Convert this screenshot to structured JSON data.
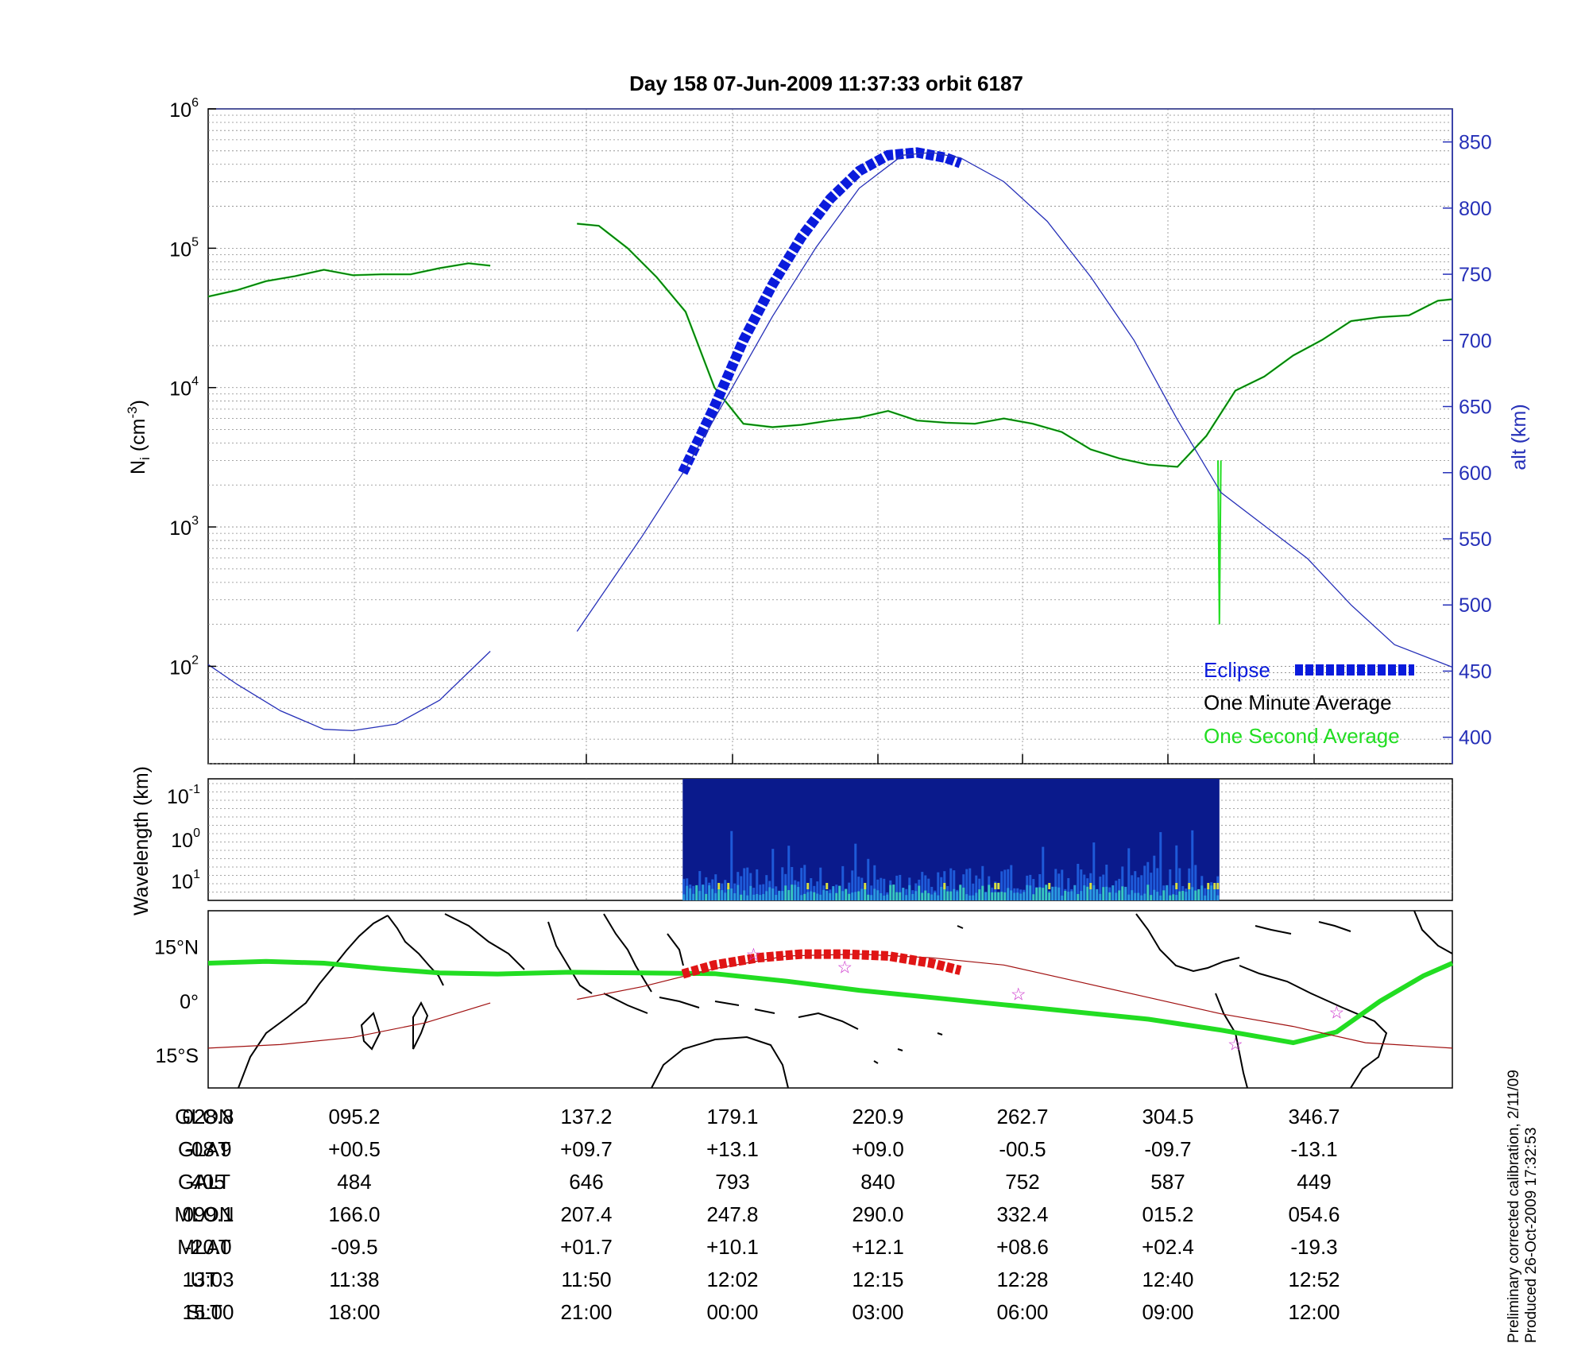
{
  "title": "Day 158  07-Jun-2009 11:37:33    orbit 6187",
  "footer": {
    "line1": "Preliminary corrected calibration, 2/11/09",
    "line2": "Produced 26-Oct-2009 17:32:53"
  },
  "colors": {
    "eclipse": "#0a1bdc",
    "minute_avg": "#0b5a10",
    "second_avg": "#22dd22",
    "altitude": "#2630b8",
    "track": "#22dd22",
    "magnetic_equator": "#a01010",
    "eclipse_track": "#e01515",
    "stars": "#cc33cc"
  },
  "chart_data": [
    {
      "type": "line",
      "panel": "density",
      "ylabel": "N_i (cm^-3)",
      "yscale": "log",
      "ylim": [
        20,
        1000000
      ],
      "y_ticks": [
        "10^2",
        "10^3",
        "10^4",
        "10^5",
        "10^6"
      ],
      "y2label": "alt (km)",
      "y2lim": [
        380,
        875
      ],
      "y2_ticks": [
        "400",
        "450",
        "500",
        "550",
        "600",
        "650",
        "700",
        "750",
        "800",
        "850"
      ],
      "xlim": [
        0,
        8.6
      ],
      "grid": true,
      "legend_position": "lower-right",
      "legend": [
        "Eclipse",
        "One Minute Average",
        "One Second Average"
      ],
      "series": [
        {
          "name": "One Minute Average",
          "segment": 1,
          "x": [
            0,
            0.2,
            0.4,
            0.6,
            0.8,
            1.0,
            1.2,
            1.4,
            1.6,
            1.8,
            1.95
          ],
          "y": [
            45000,
            50000,
            58000,
            63000,
            70000,
            64000,
            65000,
            65000,
            72000,
            78000,
            75000
          ]
        },
        {
          "name": "One Minute Average",
          "segment": 2,
          "x": [
            2.55,
            2.7,
            2.9,
            3.1,
            3.3,
            3.5,
            3.7,
            3.9,
            4.1,
            4.3,
            4.5,
            4.7,
            4.9,
            5.1,
            5.3,
            5.5,
            5.7,
            5.9,
            6.1,
            6.3,
            6.5,
            6.7,
            6.9,
            7.1,
            7.3,
            7.5,
            7.7,
            7.9,
            8.1,
            8.3,
            8.5,
            8.6
          ],
          "y": [
            150000,
            145000,
            100000,
            62000,
            35000,
            10000,
            5500,
            5200,
            5400,
            5800,
            6100,
            6800,
            5800,
            5600,
            5500,
            6000,
            5500,
            4800,
            3600,
            3100,
            2800,
            2700,
            4500,
            9500,
            12000,
            17000,
            22000,
            30000,
            32000,
            33000,
            42000,
            43000
          ]
        },
        {
          "name": "One Second Average",
          "segment": "spike",
          "x": [
            6.98,
            6.99,
            7.0
          ],
          "y": [
            3000,
            200,
            3000
          ]
        },
        {
          "name": "Eclipse",
          "axis": "alt",
          "x": [
            3.28,
            3.5,
            3.7,
            3.9,
            4.1,
            4.3,
            4.5,
            4.7,
            4.9,
            5.1,
            5.2
          ],
          "y": [
            600,
            650,
            700,
            742,
            778,
            807,
            828,
            840,
            842,
            838,
            834
          ]
        },
        {
          "name": "altitude",
          "axis": "alt",
          "x": [
            0,
            0.2,
            0.5,
            0.8,
            1.0,
            1.3,
            1.6,
            1.95,
            2.55,
            2.8,
            3.0,
            3.3,
            3.6,
            3.9,
            4.2,
            4.5,
            4.8,
            5.0,
            5.2,
            5.5,
            5.8,
            6.1,
            6.4,
            6.7,
            7.0,
            7.3,
            7.6,
            7.9,
            8.2,
            8.6
          ],
          "y": [
            455,
            440,
            420,
            406,
            405,
            410,
            428,
            465,
            480,
            520,
            552,
            603,
            660,
            718,
            770,
            815,
            840,
            842,
            838,
            820,
            790,
            748,
            700,
            640,
            585,
            560,
            535,
            500,
            470,
            453
          ]
        }
      ]
    },
    {
      "type": "heatmap",
      "panel": "spectrogram",
      "ylabel": "Wavelength (km)",
      "yscale": "log",
      "y_ticks": [
        "10^-1",
        "10^0",
        "10^1"
      ],
      "x_range_filled": [
        3.28,
        6.99
      ],
      "grid": true
    },
    {
      "type": "line",
      "panel": "map",
      "y_ticks": [
        "15°N",
        "0°",
        "15°S"
      ],
      "ylim": [
        -24,
        25
      ],
      "series": [
        {
          "name": "satellite track",
          "x": [
            0,
            0.4,
            0.8,
            1.2,
            1.6,
            2.0,
            2.5,
            3.0,
            3.5,
            4.0,
            4.5,
            5.0,
            5.5,
            6.0,
            6.5,
            7.0,
            7.5,
            7.8,
            8.1,
            8.4,
            8.6
          ],
          "y": [
            10.5,
            11,
            10.5,
            9,
            7.8,
            7.5,
            8,
            7.8,
            7.6,
            5.5,
            3,
            1,
            -1,
            -3,
            -5,
            -8,
            -11.5,
            -8.5,
            0,
            7,
            10.5
          ]
        },
        {
          "name": "magnetic equator",
          "x": [
            0,
            0.5,
            1.0,
            1.5,
            1.95,
            2.55,
            3.0,
            3.5,
            4.0,
            4.5,
            5.0,
            5.5,
            6.0,
            6.5,
            7.0,
            7.5,
            8.0,
            8.6
          ],
          "y": [
            -13,
            -12,
            -10,
            -6,
            -0.5,
            0.5,
            4,
            9,
            12.5,
            13,
            12,
            10,
            5.5,
            1,
            -3.5,
            -7,
            -11.5,
            -13
          ]
        },
        {
          "name": "eclipse track",
          "x": [
            3.28,
            3.5,
            3.8,
            4.1,
            4.4,
            4.7,
            5.0,
            5.2
          ],
          "y": [
            7.5,
            10,
            12,
            13,
            13,
            12.5,
            10.5,
            8.5
          ]
        }
      ],
      "stars": [
        [
          3.77,
          13
        ],
        [
          4.4,
          9.5
        ],
        [
          5.6,
          2
        ],
        [
          7.1,
          -11.8
        ],
        [
          7.8,
          -3
        ]
      ]
    }
  ],
  "table": {
    "row_labels": [
      "GLON",
      "GLAT",
      "GALT",
      "MLON",
      "MLAT",
      "UT",
      "SLT"
    ],
    "columns": [
      [
        "028.8",
        "-08.9",
        "405",
        "099.1",
        "-20.0",
        "13:03",
        "15:00"
      ],
      [
        "095.2",
        "+00.5",
        "484",
        "166.0",
        "-09.5",
        "11:38",
        "18:00"
      ],
      [
        "137.2",
        "+09.7",
        "646",
        "207.4",
        "+01.7",
        "11:50",
        "21:00"
      ],
      [
        "179.1",
        "+13.1",
        "793",
        "247.8",
        "+10.1",
        "12:02",
        "00:00"
      ],
      [
        "220.9",
        "+09.0",
        "840",
        "290.0",
        "+12.1",
        "12:15",
        "03:00"
      ],
      [
        "262.7",
        "-00.5",
        "752",
        "332.4",
        "+08.6",
        "12:28",
        "06:00"
      ],
      [
        "304.5",
        "-09.7",
        "587",
        "015.2",
        "+02.4",
        "12:40",
        "09:00"
      ],
      [
        "346.7",
        "-13.1",
        "449",
        "054.6",
        "-19.3",
        "12:52",
        "12:00"
      ]
    ]
  }
}
